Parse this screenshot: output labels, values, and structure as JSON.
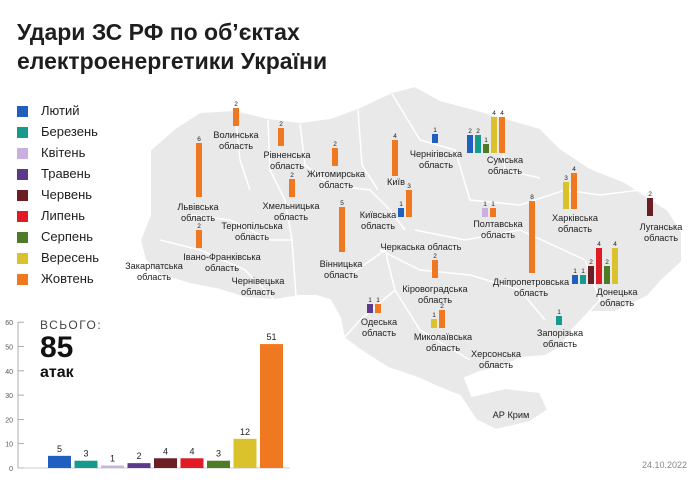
{
  "title": {
    "line1": "Удари ЗС РФ по об’єктах",
    "line2": "електроенергетики України"
  },
  "legend": [
    {
      "label": "Лютий",
      "color": "#1f5fbf"
    },
    {
      "label": "Березень",
      "color": "#159a8c"
    },
    {
      "label": "Квітень",
      "color": "#c8b0e0"
    },
    {
      "label": "Травень",
      "color": "#5b3a8c"
    },
    {
      "label": "Червень",
      "color": "#6b1e24"
    },
    {
      "label": "Липень",
      "color": "#e01b24"
    },
    {
      "label": "Серпень",
      "color": "#4f7a28"
    },
    {
      "label": "Вересень",
      "color": "#d9c22b"
    },
    {
      "label": "Жовтень",
      "color": "#f07820"
    }
  ],
  "total": {
    "caption": "ВСЬОГО:",
    "number": "85",
    "unit": "атак"
  },
  "date": "24.10.2022",
  "chart_data": {
    "type": "bar",
    "categories": [
      "Лютий",
      "Березень",
      "Квітень",
      "Травень",
      "Червень",
      "Липень",
      "Серпень",
      "Вересень",
      "Жовтень"
    ],
    "values": [
      5,
      3,
      1,
      2,
      4,
      4,
      3,
      12,
      51
    ],
    "ylim": [
      0,
      60
    ],
    "yticks": [
      "0",
      "10",
      "20",
      "30",
      "40",
      "50",
      "60"
    ]
  },
  "regions": [
    {
      "name": "Волинська\nобласть",
      "bars": [
        [
          8,
          2
        ]
      ]
    },
    {
      "name": "Рівненська\nобласть",
      "bars": [
        [
          8,
          2
        ]
      ]
    },
    {
      "name": "Житомирська\nобласть",
      "bars": [
        [
          8,
          2
        ]
      ]
    },
    {
      "name": "Чернігівська\nобласть",
      "bars": [
        [
          0,
          1
        ]
      ]
    },
    {
      "name": "Сумська\nобласть",
      "bars": [
        [
          0,
          2
        ],
        [
          1,
          2
        ],
        [
          6,
          1
        ],
        [
          7,
          4
        ],
        [
          8,
          4
        ]
      ]
    },
    {
      "name": "Київ",
      "bars": [
        [
          8,
          4
        ]
      ]
    },
    {
      "name": "Київська\nобласть",
      "bars": [
        [
          0,
          1
        ],
        [
          8,
          3
        ]
      ]
    },
    {
      "name": "Львівська\nобласть",
      "bars": [
        [
          8,
          6
        ]
      ]
    },
    {
      "name": "Хмельницька\nобласть",
      "bars": [
        [
          8,
          2
        ]
      ]
    },
    {
      "name": "Тернопільська\nобласть",
      "bars": []
    },
    {
      "name": "Вінницька\nобласть",
      "bars": [
        [
          8,
          5
        ]
      ]
    },
    {
      "name": "Черкаська область",
      "bars": []
    },
    {
      "name": "Полтавська\nобласть",
      "bars": [
        [
          2,
          1
        ],
        [
          8,
          1
        ]
      ]
    },
    {
      "name": "Харківська\nобласть",
      "bars": [
        [
          7,
          3
        ],
        [
          8,
          4
        ]
      ]
    },
    {
      "name": "Луганська\nобласть",
      "bars": [
        [
          4,
          2
        ]
      ]
    },
    {
      "name": "Закарпатська\nобласть",
      "bars": []
    },
    {
      "name": "Івано-Франківська\nобласть",
      "bars": [
        [
          8,
          2
        ]
      ]
    },
    {
      "name": "Чернівецька\nобласть",
      "bars": []
    },
    {
      "name": "Кіровоградська\nобласть",
      "bars": [
        [
          8,
          2
        ]
      ]
    },
    {
      "name": "Дніпропетровська\nобласть",
      "bars": [
        [
          8,
          8
        ]
      ]
    },
    {
      "name": "Донецька\nобласть",
      "bars": [
        [
          0,
          1
        ],
        [
          1,
          1
        ],
        [
          4,
          2
        ],
        [
          5,
          4
        ],
        [
          6,
          2
        ],
        [
          7,
          4
        ]
      ]
    },
    {
      "name": "Одеська\nобласть",
      "bars": [
        [
          3,
          1
        ],
        [
          8,
          1
        ]
      ]
    },
    {
      "name": "Миколаївська\nобласть",
      "bars": [
        [
          7,
          1
        ],
        [
          8,
          2
        ]
      ]
    },
    {
      "name": "Запорізька\nобласть",
      "bars": [
        [
          1,
          1
        ]
      ]
    },
    {
      "name": "Херсонська\nобласть",
      "bars": []
    },
    {
      "name": "АР Крим",
      "bars": []
    }
  ]
}
